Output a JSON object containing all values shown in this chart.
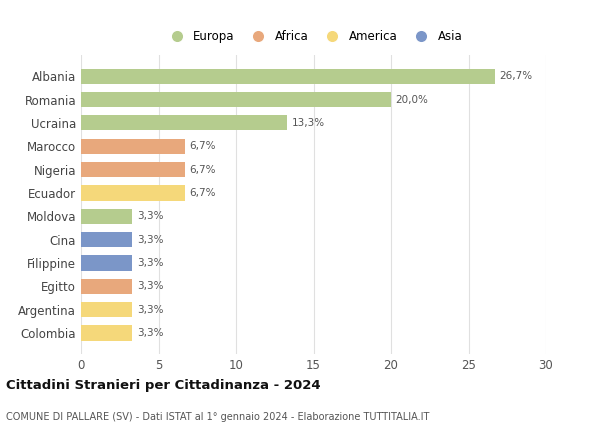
{
  "countries": [
    "Albania",
    "Romania",
    "Ucraina",
    "Marocco",
    "Nigeria",
    "Ecuador",
    "Moldova",
    "Cina",
    "Filippine",
    "Egitto",
    "Argentina",
    "Colombia"
  ],
  "values": [
    26.7,
    20.0,
    13.3,
    6.7,
    6.7,
    6.7,
    3.3,
    3.3,
    3.3,
    3.3,
    3.3,
    3.3
  ],
  "labels": [
    "26,7%",
    "20,0%",
    "13,3%",
    "6,7%",
    "6,7%",
    "6,7%",
    "3,3%",
    "3,3%",
    "3,3%",
    "3,3%",
    "3,3%",
    "3,3%"
  ],
  "colors": [
    "#b5cc8e",
    "#b5cc8e",
    "#b5cc8e",
    "#e8a87c",
    "#e8a87c",
    "#f5d87a",
    "#b5cc8e",
    "#7b96c8",
    "#7b96c8",
    "#e8a87c",
    "#f5d87a",
    "#f5d87a"
  ],
  "continent_colors": {
    "Europa": "#b5cc8e",
    "Africa": "#e8a87c",
    "America": "#f5d87a",
    "Asia": "#7b96c8"
  },
  "legend_labels": [
    "Europa",
    "Africa",
    "America",
    "Asia"
  ],
  "title": "Cittadini Stranieri per Cittadinanza - 2024",
  "subtitle": "COMUNE DI PALLARE (SV) - Dati ISTAT al 1° gennaio 2024 - Elaborazione TUTTITALIA.IT",
  "xlim": [
    0,
    30
  ],
  "xticks": [
    0,
    5,
    10,
    15,
    20,
    25,
    30
  ],
  "background_color": "#ffffff",
  "grid_color": "#e0e0e0"
}
